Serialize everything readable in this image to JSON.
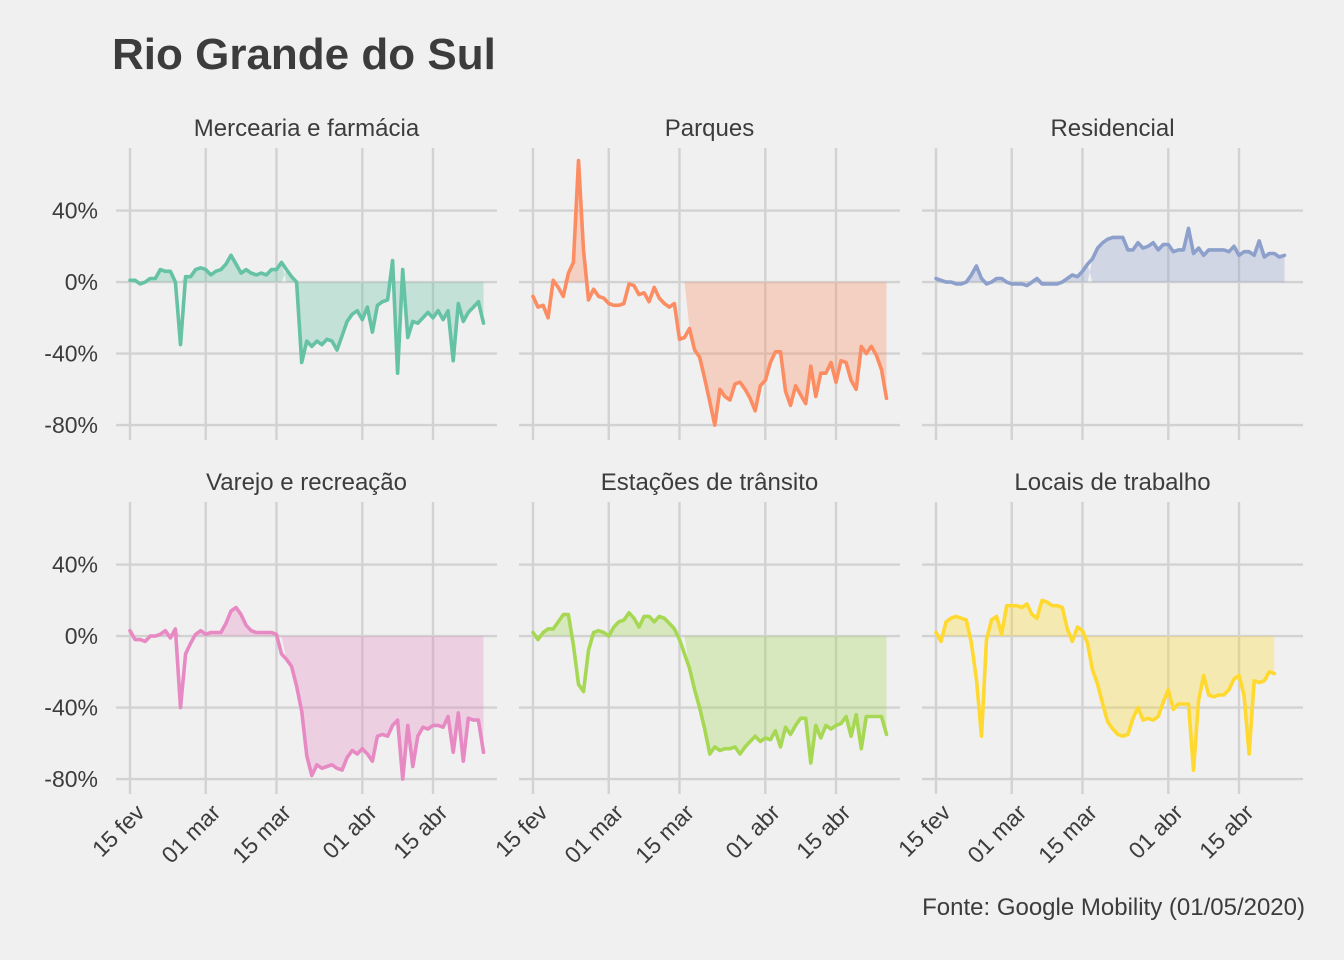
{
  "title": "Rio Grande do Sul",
  "caption": "Fonte: Google Mobility (01/05/2020)",
  "chart_data": {
    "type": "line",
    "layout": "facet-grid 2x3",
    "x_start": "2020-02-15",
    "x_end": "2020-04-26",
    "x_ticks": [
      {
        "date": "2020-02-15",
        "label": "15 fev"
      },
      {
        "date": "2020-03-01",
        "label": "01 mar"
      },
      {
        "date": "2020-03-15",
        "label": "15 mar"
      },
      {
        "date": "2020-04-01",
        "label": "01 abr"
      },
      {
        "date": "2020-04-15",
        "label": "15 abr"
      }
    ],
    "y_ticks": [
      {
        "value": 40,
        "label": "40%"
      },
      {
        "value": 0,
        "label": "0%"
      },
      {
        "value": -40,
        "label": "-40%"
      },
      {
        "value": -80,
        "label": "-80%"
      }
    ],
    "ylim": [
      -85,
      75
    ],
    "fill_from": "2020-03-17",
    "grid": true,
    "panels": [
      {
        "name": "Mercearia e farmácia",
        "color": "#66c2a5",
        "values": [
          1,
          1,
          -1,
          0,
          2,
          2,
          7,
          6,
          6,
          0,
          -35,
          3,
          3,
          7,
          8,
          7,
          4,
          6,
          7,
          10,
          15,
          10,
          5,
          7,
          5,
          4,
          5,
          4,
          7,
          7,
          11,
          7,
          3,
          0,
          -45,
          -33,
          -36,
          -33,
          -35,
          -32,
          -33,
          -38,
          -30,
          -22,
          -18,
          -16,
          -21,
          -14,
          -28,
          -13,
          -11,
          -10,
          12,
          -51,
          7,
          -31,
          -22,
          -23,
          -20,
          -17,
          -20,
          -16,
          -21,
          -16,
          -44,
          -12,
          -22,
          -17,
          -14,
          -11,
          -23
        ]
      },
      {
        "name": "Parques",
        "color": "#fc8d62",
        "values": [
          -8,
          -14,
          -13,
          -20,
          1,
          -3,
          -8,
          5,
          11,
          68,
          18,
          -10,
          -4,
          -8,
          -9,
          -12,
          -13,
          -13,
          -12,
          -1,
          -2,
          -7,
          -6,
          -11,
          -3,
          -9,
          -12,
          -14,
          -12,
          -32,
          -31,
          -26,
          -38,
          -42,
          -54,
          -67,
          -80,
          -60,
          -64,
          -66,
          -57,
          -56,
          -60,
          -65,
          -72,
          -58,
          -55,
          -45,
          -39,
          -39,
          -61,
          -69,
          -58,
          -63,
          -68,
          -47,
          -64,
          -51,
          -51,
          -45,
          -56,
          -44,
          -45,
          -55,
          -60,
          -36,
          -40,
          -36,
          -41,
          -49,
          -65
        ]
      },
      {
        "name": "Residencial",
        "color": "#8da0cb",
        "values": [
          2,
          1,
          0,
          0,
          -1,
          -1,
          0,
          4,
          9,
          2,
          -1,
          0,
          2,
          2,
          0,
          -1,
          -1,
          -1,
          -2,
          0,
          2,
          -1,
          -1,
          -1,
          -1,
          0,
          2,
          4,
          3,
          6,
          10,
          13,
          19,
          22,
          24,
          25,
          25,
          25,
          18,
          18,
          22,
          19,
          20,
          22,
          18,
          21,
          21,
          17,
          18,
          18,
          30,
          16,
          19,
          15,
          18,
          18,
          18,
          18,
          17,
          20,
          15,
          17,
          17,
          15,
          23,
          14,
          16,
          16,
          14,
          15
        ]
      },
      {
        "name": "Varejo e recreação",
        "color": "#e78ac3",
        "values": [
          3,
          -2,
          -2,
          -3,
          0,
          0,
          1,
          3,
          -1,
          4,
          -40,
          -10,
          -4,
          1,
          3,
          1,
          2,
          2,
          2,
          7,
          14,
          16,
          12,
          6,
          3,
          2,
          2,
          2,
          2,
          1,
          -10,
          -13,
          -17,
          -28,
          -42,
          -67,
          -78,
          -72,
          -74,
          -73,
          -72,
          -74,
          -75,
          -68,
          -64,
          -66,
          -63,
          -66,
          -70,
          -56,
          -55,
          -56,
          -50,
          -47,
          -80,
          -50,
          -73,
          -56,
          -51,
          -52,
          -50,
          -50,
          -51,
          -45,
          -65,
          -43,
          -70,
          -46,
          -47,
          -47,
          -65
        ]
      },
      {
        "name": "Estações de trânsito",
        "color": "#a6d854",
        "values": [
          2,
          -2,
          2,
          4,
          4,
          8,
          12,
          12,
          -5,
          -27,
          -31,
          -8,
          2,
          3,
          2,
          0,
          5,
          8,
          9,
          13,
          10,
          5,
          11,
          11,
          8,
          11,
          10,
          7,
          4,
          -2,
          -10,
          -18,
          -30,
          -40,
          -52,
          -66,
          -62,
          -64,
          -63,
          -63,
          -62,
          -66,
          -62,
          -59,
          -56,
          -59,
          -57,
          -58,
          -53,
          -62,
          -51,
          -55,
          -50,
          -46,
          -46,
          -71,
          -50,
          -57,
          -50,
          -52,
          -50,
          -49,
          -45,
          -56,
          -44,
          -63,
          -45,
          -45,
          -45,
          -45,
          -55
        ]
      },
      {
        "name": "Locais de trabalho",
        "color": "#ffd92f",
        "values": [
          2,
          -3,
          8,
          10,
          11,
          10,
          9,
          -4,
          -24,
          -56,
          -2,
          9,
          11,
          1,
          17,
          17,
          17,
          16,
          18,
          12,
          10,
          20,
          19,
          17,
          17,
          16,
          4,
          -3,
          5,
          3,
          -4,
          -19,
          -27,
          -38,
          -48,
          -52,
          -55,
          -56,
          -55,
          -46,
          -40,
          -47,
          -46,
          -47,
          -45,
          -37,
          -30,
          -41,
          -38,
          -38,
          -38,
          -75,
          -36,
          -22,
          -33,
          -34,
          -33,
          -33,
          -30,
          -24,
          -22,
          -33,
          -66,
          -25,
          -26,
          -25,
          -20,
          -21
        ]
      }
    ]
  }
}
